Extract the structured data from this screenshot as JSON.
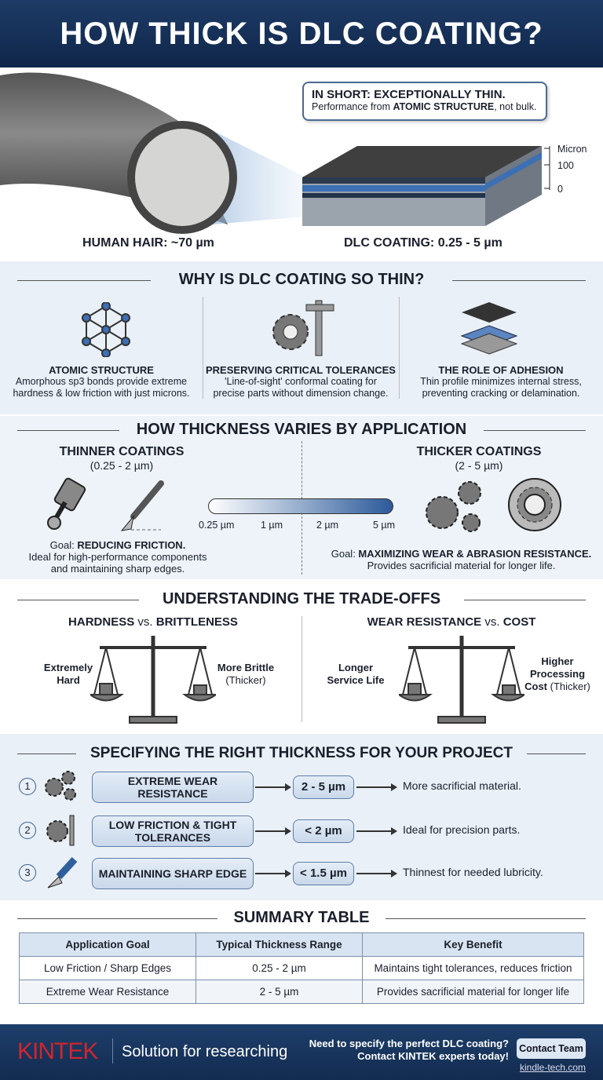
{
  "title": "HOW THICK IS DLC COATING?",
  "hero": {
    "callout_title": "IN SHORT: EXCEPTIONALLY THIN.",
    "callout_pre": "Performance from ",
    "callout_bold": "ATOMIC STRUCTURE",
    "callout_post": ", not bulk.",
    "scale_unit": "Micron",
    "scale_100": "100",
    "scale_0": "0",
    "hair_label": "HUMAN HAIR: ~70 µm",
    "dlc_label": "DLC COATING: 0.25 - 5 µm"
  },
  "why": {
    "title": "WHY IS DLC COATING SO THIN?",
    "items": [
      {
        "icon": "atom-lattice-icon",
        "title": "ATOMIC STRUCTURE",
        "desc1": "Amorphous sp3 bonds provide extreme",
        "desc2": "hardness & low friction with just microns."
      },
      {
        "icon": "gear-caliper-icon",
        "title": "PRESERVING CRITICAL TOLERANCES",
        "desc1": "'Line-of-sight' conformal coating for",
        "desc2": "precise parts without dimension change."
      },
      {
        "icon": "layers-icon",
        "title": "THE ROLE OF ADHESION",
        "desc1": "Thin profile minimizes internal stress,",
        "desc2": "preventing cracking or delamination."
      }
    ]
  },
  "thickness": {
    "title": "HOW THICKNESS VARIES BY APPLICATION",
    "thin": {
      "title": "THINNER COATINGS",
      "range": "(0.25 - 2 µm)",
      "goal_pre": "Goal: ",
      "goal_bold": "REDUCING FRICTION.",
      "desc1": "Ideal for high-performance components",
      "desc2": "and maintaining sharp edges."
    },
    "thick": {
      "title": "THICKER COATINGS",
      "range": "(2 - 5 µm)",
      "goal_pre": "Goal: ",
      "goal_bold": "MAXIMIZING WEAR & ABRASION RESISTANCE.",
      "desc1": "Provides sacrificial material for longer life."
    },
    "scale": [
      "0.25 µm",
      "1 µm",
      "2 µm",
      "5 µm"
    ]
  },
  "tradeoffs": {
    "title": "UNDERSTANDING THE TRADE-OFFS",
    "left": {
      "t1": "HARDNESS",
      "vs": " vs. ",
      "t2": "BRITTLENESS",
      "l1": "Extremely",
      "l2": "Hard",
      "r1": "More Brittle",
      "r2": "(Thicker)"
    },
    "right": {
      "t1": "WEAR RESISTANCE",
      "vs": " vs. ",
      "t2": "COST",
      "l1": "Longer",
      "l2": "Service Life",
      "r1": "Higher",
      "r2": "Processing",
      "r3": "Cost",
      "r4": " (Thicker)"
    }
  },
  "specify": {
    "title": "SPECIFYING THE RIGHT THICKNESS FOR YOUR PROJECT",
    "rows": [
      {
        "num": "1",
        "icon": "gears-icon",
        "label": "EXTREME WEAR RESISTANCE",
        "value": "2 - 5 µm",
        "result": "More sacrificial material."
      },
      {
        "num": "2",
        "icon": "gear-caliper-icon",
        "label": "LOW FRICTION & TIGHT TOLERANCES",
        "value": "< 2 µm",
        "result": "Ideal for precision parts."
      },
      {
        "num": "3",
        "icon": "blade-icon",
        "label": "MAINTAINING SHARP EDGE",
        "value": "< 1.5 µm",
        "result": "Thinnest for needed lubricity."
      }
    ]
  },
  "summary": {
    "title": "SUMMARY TABLE",
    "headers": [
      "Application Goal",
      "Typical Thickness Range",
      "Key Benefit"
    ],
    "rows": [
      [
        "Low Friction / Sharp Edges",
        "0.25 - 2 µm",
        "Maintains tight tolerances, reduces friction"
      ],
      [
        "Extreme Wear Resistance",
        "2 - 5 µm",
        "Provides sacrificial material for longer life"
      ]
    ]
  },
  "footer": {
    "logo": "KINTEK",
    "tagline": "Solution for researching",
    "cta1": "Need to specify the perfect DLC coating?",
    "cta2": "Contact KINTEK experts today!",
    "button": "Contact Team",
    "url": "kindle-tech.com"
  },
  "colors": {
    "navy": "#1a3560",
    "accent_blue": "#2f5f9e",
    "panel": "#e8f0f8",
    "brand_red": "#d0262e"
  }
}
